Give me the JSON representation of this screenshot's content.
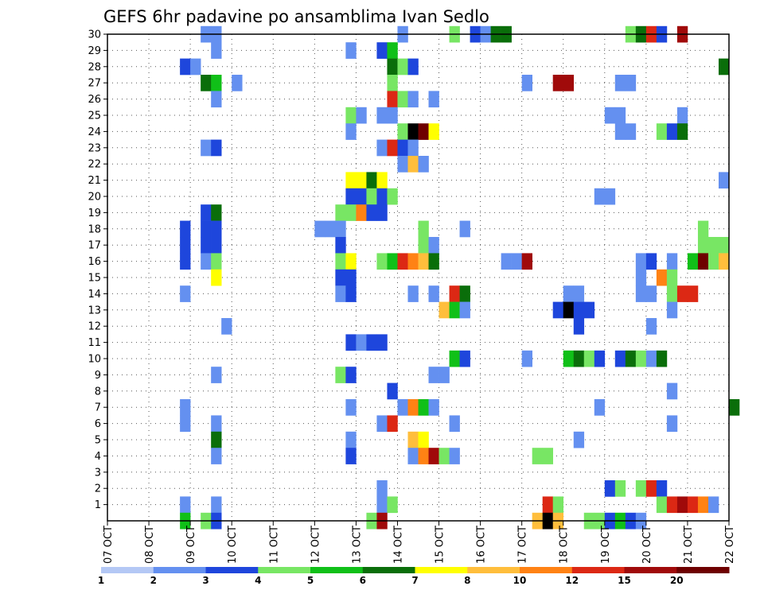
{
  "chart_data": {
    "type": "heatmap",
    "title": "GEFS 6hr padavine po ansamblima Ivan Sedlo",
    "xlabel": "",
    "ylabel": "",
    "x_tick_labels": [
      "07 OCT",
      "08 OCT",
      "09 OCT",
      "10 OCT",
      "11 OCT",
      "12 OCT",
      "13 OCT",
      "14 OCT",
      "15 OCT",
      "16 OCT",
      "17 OCT",
      "18 OCT",
      "19 OCT",
      "20 OCT",
      "21 OCT",
      "22 OCT"
    ],
    "y_tick_labels": [
      "1",
      "2",
      "3",
      "4",
      "5",
      "6",
      "7",
      "8",
      "9",
      "10",
      "11",
      "12",
      "13",
      "14",
      "15",
      "16",
      "17",
      "18",
      "19",
      "20",
      "21",
      "22",
      "23",
      "24",
      "25",
      "26",
      "27",
      "28",
      "29",
      "30"
    ],
    "ylim": [
      0,
      30
    ],
    "grid": true,
    "colorbar": {
      "labels": [
        "1",
        "2",
        "3",
        "4",
        "5",
        "6",
        "7",
        "8",
        "10",
        "12",
        "15",
        "20"
      ],
      "colors": [
        "#b4c8f5",
        "#6490f0",
        "#1e46dc",
        "#78e664",
        "#10c018",
        "#0a6e0a",
        "#ffff00",
        "#ffbe3c",
        "#ff8214",
        "#dc2814",
        "#a00a0a",
        "#6e0000"
      ]
    },
    "cells": [
      [
        9,
        30,
        1
      ],
      [
        10,
        30,
        1
      ],
      [
        28,
        30,
        1
      ],
      [
        33,
        30,
        3
      ],
      [
        35,
        30,
        2
      ],
      [
        36,
        30,
        1
      ],
      [
        37,
        30,
        5
      ],
      [
        38,
        30,
        5
      ],
      [
        50,
        30,
        3
      ],
      [
        51,
        30,
        5
      ],
      [
        52,
        30,
        9
      ],
      [
        53,
        30,
        2
      ],
      [
        55,
        30,
        10
      ],
      [
        10,
        29,
        1
      ],
      [
        23,
        29,
        1
      ],
      [
        26,
        29,
        2
      ],
      [
        27,
        29,
        4
      ],
      [
        7,
        28,
        2
      ],
      [
        8,
        28,
        1
      ],
      [
        27,
        28,
        5
      ],
      [
        28,
        28,
        3
      ],
      [
        29,
        28,
        2
      ],
      [
        59,
        28,
        5
      ],
      [
        9,
        27,
        5
      ],
      [
        10,
        27,
        4
      ],
      [
        12,
        27,
        1
      ],
      [
        27,
        27,
        3
      ],
      [
        40,
        27,
        1
      ],
      [
        43,
        27,
        10
      ],
      [
        44,
        27,
        10
      ],
      [
        49,
        27,
        1
      ],
      [
        50,
        27,
        1
      ],
      [
        10,
        26,
        1
      ],
      [
        27,
        26,
        9
      ],
      [
        28,
        26,
        3
      ],
      [
        29,
        26,
        1
      ],
      [
        31,
        26,
        1
      ],
      [
        23,
        25,
        3
      ],
      [
        24,
        25,
        1
      ],
      [
        26,
        25,
        1
      ],
      [
        27,
        25,
        1
      ],
      [
        48,
        25,
        1
      ],
      [
        49,
        25,
        1
      ],
      [
        55,
        25,
        1
      ],
      [
        23,
        24,
        1
      ],
      [
        28,
        24,
        3
      ],
      [
        29,
        24,
        12
      ],
      [
        30,
        24,
        11
      ],
      [
        31,
        24,
        6
      ],
      [
        49,
        24,
        1
      ],
      [
        50,
        24,
        1
      ],
      [
        53,
        24,
        3
      ],
      [
        54,
        24,
        2
      ],
      [
        55,
        24,
        5
      ],
      [
        9,
        23,
        1
      ],
      [
        10,
        23,
        2
      ],
      [
        26,
        23,
        1
      ],
      [
        27,
        23,
        9
      ],
      [
        28,
        23,
        2
      ],
      [
        29,
        23,
        1
      ],
      [
        28,
        22,
        1
      ],
      [
        29,
        22,
        7
      ],
      [
        30,
        22,
        1
      ],
      [
        23,
        21,
        6
      ],
      [
        24,
        21,
        6
      ],
      [
        25,
        21,
        5
      ],
      [
        26,
        21,
        6
      ],
      [
        59,
        21,
        1
      ],
      [
        23,
        20,
        2
      ],
      [
        24,
        20,
        2
      ],
      [
        25,
        20,
        3
      ],
      [
        26,
        20,
        2
      ],
      [
        27,
        20,
        3
      ],
      [
        47,
        20,
        1
      ],
      [
        48,
        20,
        1
      ],
      [
        9,
        19,
        2
      ],
      [
        10,
        19,
        5
      ],
      [
        22,
        19,
        3
      ],
      [
        23,
        19,
        3
      ],
      [
        24,
        19,
        8
      ],
      [
        25,
        19,
        2
      ],
      [
        26,
        19,
        2
      ],
      [
        7,
        18,
        2
      ],
      [
        9,
        18,
        2
      ],
      [
        10,
        18,
        2
      ],
      [
        20,
        18,
        1
      ],
      [
        21,
        18,
        1
      ],
      [
        22,
        18,
        1
      ],
      [
        30,
        18,
        3
      ],
      [
        34,
        18,
        1
      ],
      [
        57,
        18,
        3
      ],
      [
        7,
        17,
        2
      ],
      [
        9,
        17,
        2
      ],
      [
        10,
        17,
        2
      ],
      [
        22,
        17,
        2
      ],
      [
        30,
        17,
        3
      ],
      [
        31,
        17,
        1
      ],
      [
        57,
        17,
        3
      ],
      [
        58,
        17,
        3
      ],
      [
        59,
        17,
        3
      ],
      [
        7,
        16,
        2
      ],
      [
        9,
        16,
        1
      ],
      [
        10,
        16,
        3
      ],
      [
        22,
        16,
        3
      ],
      [
        23,
        16,
        6
      ],
      [
        26,
        16,
        3
      ],
      [
        27,
        16,
        4
      ],
      [
        28,
        16,
        9
      ],
      [
        29,
        16,
        8
      ],
      [
        30,
        16,
        7
      ],
      [
        31,
        16,
        5
      ],
      [
        38,
        16,
        1
      ],
      [
        39,
        16,
        1
      ],
      [
        40,
        16,
        10
      ],
      [
        51,
        16,
        1
      ],
      [
        52,
        16,
        2
      ],
      [
        54,
        16,
        1
      ],
      [
        56,
        16,
        4
      ],
      [
        57,
        16,
        11
      ],
      [
        58,
        16,
        3
      ],
      [
        59,
        16,
        7
      ],
      [
        10,
        15,
        6
      ],
      [
        22,
        15,
        2
      ],
      [
        23,
        15,
        2
      ],
      [
        51,
        15,
        1
      ],
      [
        53,
        15,
        8
      ],
      [
        54,
        15,
        3
      ],
      [
        7,
        14,
        1
      ],
      [
        22,
        14,
        1
      ],
      [
        23,
        14,
        2
      ],
      [
        29,
        14,
        1
      ],
      [
        31,
        14,
        1
      ],
      [
        33,
        14,
        9
      ],
      [
        34,
        14,
        5
      ],
      [
        44,
        14,
        1
      ],
      [
        45,
        14,
        1
      ],
      [
        51,
        14,
        1
      ],
      [
        52,
        14,
        1
      ],
      [
        54,
        14,
        3
      ],
      [
        55,
        14,
        9
      ],
      [
        56,
        14,
        9
      ],
      [
        32,
        13,
        7
      ],
      [
        33,
        13,
        4
      ],
      [
        34,
        13,
        1
      ],
      [
        43,
        13,
        2
      ],
      [
        44,
        13,
        12
      ],
      [
        45,
        13,
        2
      ],
      [
        46,
        13,
        2
      ],
      [
        54,
        13,
        1
      ],
      [
        11,
        12,
        1
      ],
      [
        45,
        12,
        2
      ],
      [
        52,
        12,
        1
      ],
      [
        23,
        11,
        2
      ],
      [
        24,
        11,
        1
      ],
      [
        25,
        11,
        2
      ],
      [
        26,
        11,
        2
      ],
      [
        33,
        10,
        4
      ],
      [
        34,
        10,
        2
      ],
      [
        40,
        10,
        1
      ],
      [
        44,
        10,
        4
      ],
      [
        45,
        10,
        5
      ],
      [
        46,
        10,
        3
      ],
      [
        47,
        10,
        2
      ],
      [
        49,
        10,
        2
      ],
      [
        50,
        10,
        5
      ],
      [
        51,
        10,
        3
      ],
      [
        52,
        10,
        1
      ],
      [
        53,
        10,
        5
      ],
      [
        10,
        9,
        1
      ],
      [
        22,
        9,
        3
      ],
      [
        23,
        9,
        2
      ],
      [
        31,
        9,
        1
      ],
      [
        32,
        9,
        1
      ],
      [
        27,
        8,
        2
      ],
      [
        54,
        8,
        1
      ],
      [
        7,
        7,
        1
      ],
      [
        23,
        7,
        1
      ],
      [
        28,
        7,
        1
      ],
      [
        29,
        7,
        8
      ],
      [
        30,
        7,
        4
      ],
      [
        31,
        7,
        1
      ],
      [
        47,
        7,
        1
      ],
      [
        60,
        7,
        5
      ],
      [
        7,
        6,
        1
      ],
      [
        10,
        6,
        1
      ],
      [
        26,
        6,
        1
      ],
      [
        27,
        6,
        9
      ],
      [
        33,
        6,
        1
      ],
      [
        54,
        6,
        1
      ],
      [
        10,
        5,
        5
      ],
      [
        23,
        5,
        1
      ],
      [
        29,
        5,
        7
      ],
      [
        30,
        5,
        6
      ],
      [
        45,
        5,
        1
      ],
      [
        10,
        4,
        1
      ],
      [
        23,
        4,
        2
      ],
      [
        29,
        4,
        1
      ],
      [
        30,
        4,
        8
      ],
      [
        31,
        4,
        10
      ],
      [
        32,
        4,
        3
      ],
      [
        33,
        4,
        1
      ],
      [
        41,
        4,
        3
      ],
      [
        42,
        4,
        3
      ],
      [
        26,
        2,
        1
      ],
      [
        48,
        2,
        2
      ],
      [
        49,
        2,
        3
      ],
      [
        51,
        2,
        3
      ],
      [
        52,
        2,
        9
      ],
      [
        53,
        2,
        2
      ],
      [
        7,
        1,
        1
      ],
      [
        10,
        1,
        1
      ],
      [
        26,
        1,
        1
      ],
      [
        27,
        1,
        3
      ],
      [
        42,
        1,
        9
      ],
      [
        43,
        1,
        3
      ],
      [
        53,
        1,
        3
      ],
      [
        54,
        1,
        9
      ],
      [
        55,
        1,
        10
      ],
      [
        56,
        1,
        9
      ],
      [
        57,
        1,
        8
      ],
      [
        58,
        1,
        1
      ],
      [
        7,
        0,
        4
      ],
      [
        9,
        0,
        3
      ],
      [
        10,
        0,
        2
      ],
      [
        25,
        0,
        3
      ],
      [
        26,
        0,
        10
      ],
      [
        41,
        0,
        7
      ],
      [
        42,
        0,
        12
      ],
      [
        43,
        0,
        7
      ],
      [
        46,
        0,
        3
      ],
      [
        47,
        0,
        3
      ],
      [
        48,
        0,
        2
      ],
      [
        49,
        0,
        4
      ],
      [
        50,
        0,
        2
      ],
      [
        51,
        0,
        1
      ]
    ]
  }
}
